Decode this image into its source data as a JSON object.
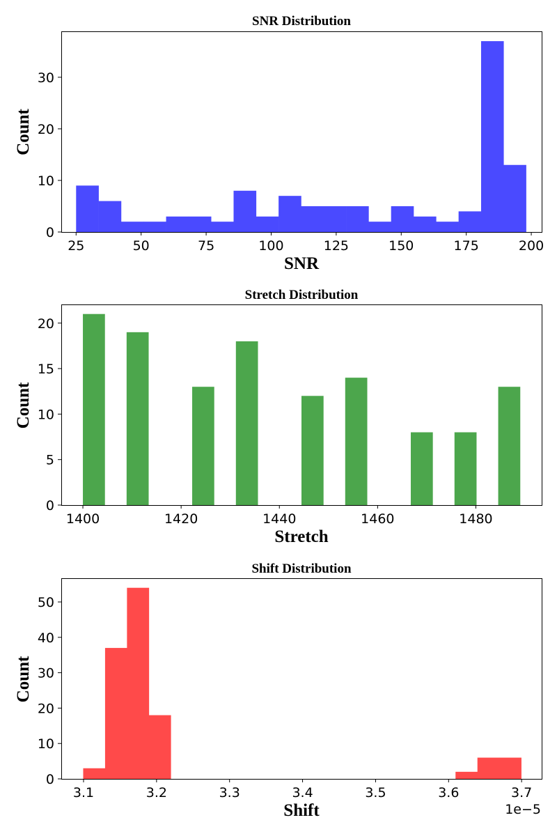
{
  "chart_data": [
    {
      "type": "bar",
      "subtype": "histogram",
      "title": "SNR Distribution",
      "xlabel": "SNR",
      "ylabel": "Count",
      "color": "#4a4aff",
      "xlim": [
        19.3,
        204
      ],
      "ylim": [
        0,
        38.9
      ],
      "xticks": [
        25,
        50,
        75,
        100,
        125,
        150,
        175,
        200
      ],
      "yticks": [
        0,
        10,
        20,
        30
      ],
      "bin_edges": [
        25,
        33.65,
        42.3,
        50.95,
        59.6,
        68.25,
        76.9,
        85.55,
        94.2,
        102.85,
        111.5,
        120.15,
        128.8,
        137.45,
        146.1,
        154.75,
        163.4,
        172.05,
        180.7,
        189.35,
        198
      ],
      "values": [
        9,
        6,
        2,
        2,
        3,
        3,
        2,
        8,
        3,
        7,
        5,
        5,
        5,
        2,
        5,
        3,
        2,
        4,
        37,
        13
      ]
    },
    {
      "type": "bar",
      "subtype": "histogram",
      "title": "Stretch Distribution",
      "xlabel": "Stretch",
      "ylabel": "Count",
      "color": "#4ca64c",
      "xlim": [
        1395.6,
        1493.4
      ],
      "ylim": [
        0,
        22.05
      ],
      "xticks": [
        1400,
        1420,
        1440,
        1460,
        1480
      ],
      "yticks": [
        0,
        5,
        10,
        15,
        20
      ],
      "bin_edges": [
        1400,
        1404.45,
        1408.9,
        1413.35,
        1417.8,
        1422.25,
        1426.7,
        1431.15,
        1435.6,
        1440.05,
        1444.5,
        1448.95,
        1453.4,
        1457.85,
        1462.3,
        1466.75,
        1471.2,
        1475.65,
        1480.1,
        1484.55,
        1489
      ],
      "values": [
        21,
        0,
        19,
        0,
        0,
        13,
        0,
        18,
        0,
        0,
        12,
        0,
        14,
        0,
        0,
        8,
        0,
        8,
        0,
        13
      ]
    },
    {
      "type": "bar",
      "subtype": "histogram",
      "title": "Shift Distribution",
      "xlabel": "Shift",
      "ylabel": "Count",
      "offset_label": "1e−5",
      "color": "#ff4a4a",
      "xlim": [
        3.0695,
        3.7275
      ],
      "ylim": [
        0,
        56.7
      ],
      "xticks": [
        3.1,
        3.2,
        3.3,
        3.4,
        3.5,
        3.6,
        3.7
      ],
      "yticks": [
        0,
        10,
        20,
        30,
        40,
        50
      ],
      "bin_edges": [
        3.0995,
        3.1295,
        3.1595,
        3.1895,
        3.2195,
        3.2495,
        3.2795,
        3.3095,
        3.3395,
        3.3695,
        3.3995,
        3.4295,
        3.4595,
        3.4895,
        3.5195,
        3.5495,
        3.5795,
        3.6095,
        3.6395,
        3.6695,
        3.6995
      ],
      "values": [
        3,
        37,
        54,
        18,
        0,
        0,
        0,
        0,
        0,
        0,
        0,
        0,
        0,
        0,
        0,
        0,
        0,
        2,
        6,
        6
      ]
    }
  ]
}
